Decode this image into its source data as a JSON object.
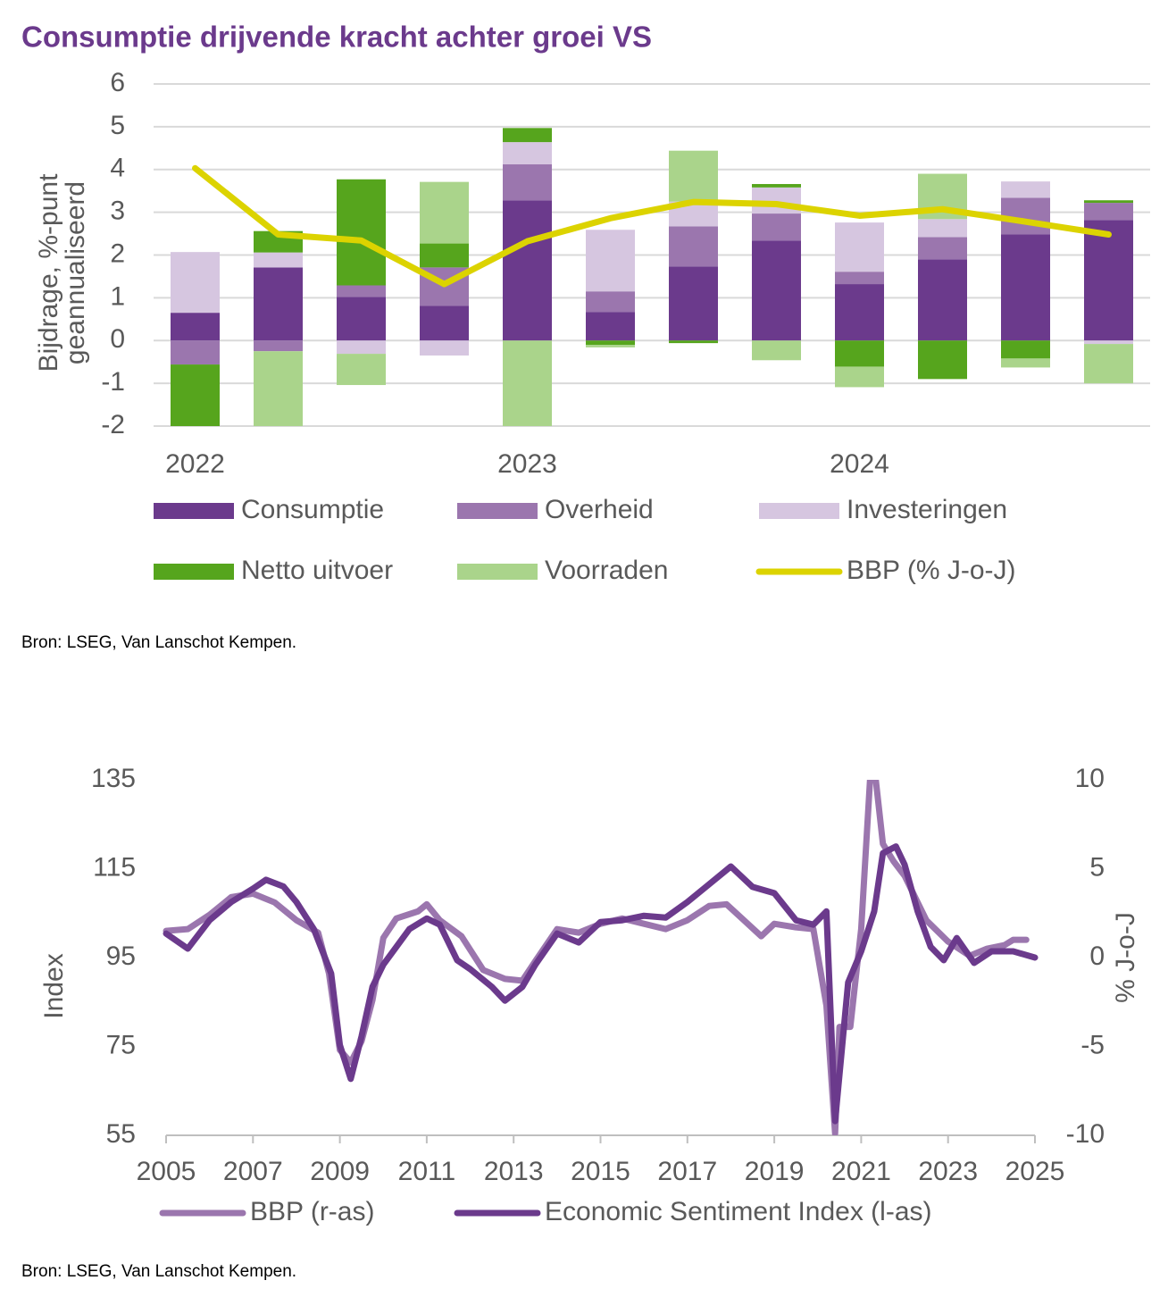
{
  "chart_data": [
    {
      "type": "bar",
      "title": "Consumptie drijvende kracht achter groei VS",
      "y_label": [
        "Bijdrage, %-punt",
        "geannualiseerd"
      ],
      "categories": [
        "2022",
        null,
        null,
        null,
        "2023",
        null,
        null,
        null,
        "2024",
        null,
        null,
        null
      ],
      "ylim": [
        -2,
        6
      ],
      "yticks": [
        -2,
        -1,
        0,
        1,
        2,
        3,
        4,
        5,
        6
      ],
      "grid": true,
      "stacked": true,
      "series": [
        {
          "name": "Consumptie",
          "color": "#6b3a8c",
          "values": [
            0.65,
            1.71,
            1.02,
            0.81,
            3.28,
            0.67,
            1.73,
            2.34,
            1.32,
            1.9,
            2.48,
            2.82
          ]
        },
        {
          "name": "Overheid",
          "color": "#9b76ae",
          "values": [
            -0.56,
            -0.25,
            0.27,
            0.9,
            0.84,
            0.48,
            0.94,
            0.63,
            0.29,
            0.52,
            0.86,
            0.4
          ]
        },
        {
          "name": "Investeringen",
          "color": "#d6c6e0",
          "values": [
            1.42,
            0.35,
            -0.31,
            -0.35,
            0.52,
            1.44,
            0.58,
            0.61,
            1.15,
            0.42,
            0.38,
            -0.08
          ]
        },
        {
          "name": "Netto uitvoer",
          "color": "#56a51d",
          "values": [
            -1.44,
            0.5,
            2.48,
            0.56,
            0.33,
            -0.1,
            -0.06,
            0.08,
            -0.61,
            -0.9,
            -0.42,
            0.06
          ]
        },
        {
          "name": "Voorraden",
          "color": "#aad48b",
          "values": [
            0,
            -1.8,
            -0.73,
            1.44,
            -2.0,
            -0.06,
            1.19,
            -0.46,
            -0.48,
            1.06,
            -0.21,
            -0.92
          ]
        },
        {
          "name": "BBP (% J-o-J)",
          "color": "#dcd300",
          "type": "line",
          "values": [
            4.03,
            2.48,
            2.34,
            1.32,
            2.32,
            2.86,
            3.24,
            3.19,
            2.92,
            3.07,
            2.78,
            2.48
          ]
        }
      ],
      "source": "Bron: LSEG, Van Lanschot Kempen."
    },
    {
      "type": "line",
      "y_label": "Index",
      "y2_label": "% J-o-J",
      "xlim": [
        2005,
        2025
      ],
      "xticks": [
        2005,
        2007,
        2009,
        2011,
        2013,
        2015,
        2017,
        2019,
        2021,
        2023,
        2025
      ],
      "ylim": [
        55,
        135
      ],
      "yticks": [
        55,
        75,
        95,
        115,
        135
      ],
      "y2lim": [
        -10,
        10
      ],
      "y2ticks": [
        -10,
        -5,
        0,
        5,
        10
      ],
      "series": [
        {
          "name": "BBP (r-as)",
          "color": "#9b76ae",
          "axis": "y2",
          "x": [
            2005.0,
            2005.5,
            2006.0,
            2006.5,
            2007.0,
            2007.5,
            2008.0,
            2008.5,
            2008.75,
            2009.0,
            2009.25,
            2009.5,
            2009.75,
            2010.0,
            2010.3,
            2010.8,
            2011.0,
            2011.3,
            2011.8,
            2012.3,
            2012.8,
            2013.2,
            2013.5,
            2014.0,
            2014.5,
            2015.0,
            2015.5,
            2016.0,
            2016.5,
            2017.0,
            2017.5,
            2017.9,
            2018.3,
            2018.7,
            2019.0,
            2019.5,
            2019.9,
            2020.2,
            2020.4,
            2020.5,
            2020.75,
            2021.0,
            2021.25,
            2021.5,
            2021.75,
            2022.0,
            2022.5,
            2023.0,
            2023.5,
            2023.9,
            2024.3,
            2024.5,
            2024.8
          ],
          "values": [
            1.5,
            1.6,
            2.4,
            3.4,
            3.6,
            3.1,
            2.1,
            1.4,
            -0.9,
            -5.2,
            -5.9,
            -4.7,
            -2.4,
            1.1,
            2.2,
            2.6,
            3.0,
            2.1,
            1.2,
            -0.7,
            -1.2,
            -1.3,
            -0.2,
            1.6,
            1.4,
            1.9,
            2.2,
            1.9,
            1.6,
            2.1,
            2.9,
            3.0,
            2.1,
            1.2,
            1.9,
            1.7,
            1.6,
            -2.7,
            -9.9,
            -3.9,
            -3.9,
            1.6,
            11.9,
            6.4,
            5.4,
            4.6,
            2.1,
            0.9,
            0.1,
            0.5,
            0.7,
            1.0,
            1.0
          ]
        },
        {
          "name": "Economic Sentiment Index (l-as)",
          "color": "#6b3a8c",
          "axis": "y",
          "x": [
            2005.0,
            2005.5,
            2006.0,
            2006.5,
            2007.0,
            2007.3,
            2007.7,
            2008.0,
            2008.4,
            2008.8,
            2009.0,
            2009.25,
            2009.5,
            2009.75,
            2010.0,
            2010.3,
            2010.6,
            2011.0,
            2011.3,
            2011.7,
            2012.0,
            2012.5,
            2012.8,
            2013.2,
            2013.5,
            2014.0,
            2014.5,
            2015.0,
            2015.5,
            2016.0,
            2016.5,
            2017.0,
            2017.5,
            2018.0,
            2018.5,
            2019.0,
            2019.5,
            2019.9,
            2020.2,
            2020.4,
            2020.7,
            2021.0,
            2021.3,
            2021.5,
            2021.8,
            2022.0,
            2022.3,
            2022.6,
            2022.9,
            2023.2,
            2023.6,
            2024.0,
            2024.5,
            2025.0
          ],
          "values": [
            100.4,
            97,
            103.4,
            107.5,
            110.5,
            112.5,
            111,
            107.5,
            101.4,
            91.4,
            75.3,
            67.7,
            77.3,
            88.4,
            93.4,
            97.4,
            101.4,
            103.8,
            102.4,
            94.4,
            92.4,
            88.4,
            85.3,
            88.4,
            93.4,
            100.4,
            98.4,
            103,
            103.4,
            104.4,
            104,
            107.5,
            111.5,
            115.5,
            110.9,
            109.5,
            103.4,
            102.4,
            105.4,
            58.2,
            89.4,
            96.4,
            105.4,
            118.5,
            120,
            115.9,
            105.4,
            97.4,
            94.4,
            99.4,
            93.8,
            96.4,
            96.4,
            95
          ]
        }
      ],
      "source": "Bron: LSEG, Van Lanschot Kempen."
    }
  ]
}
